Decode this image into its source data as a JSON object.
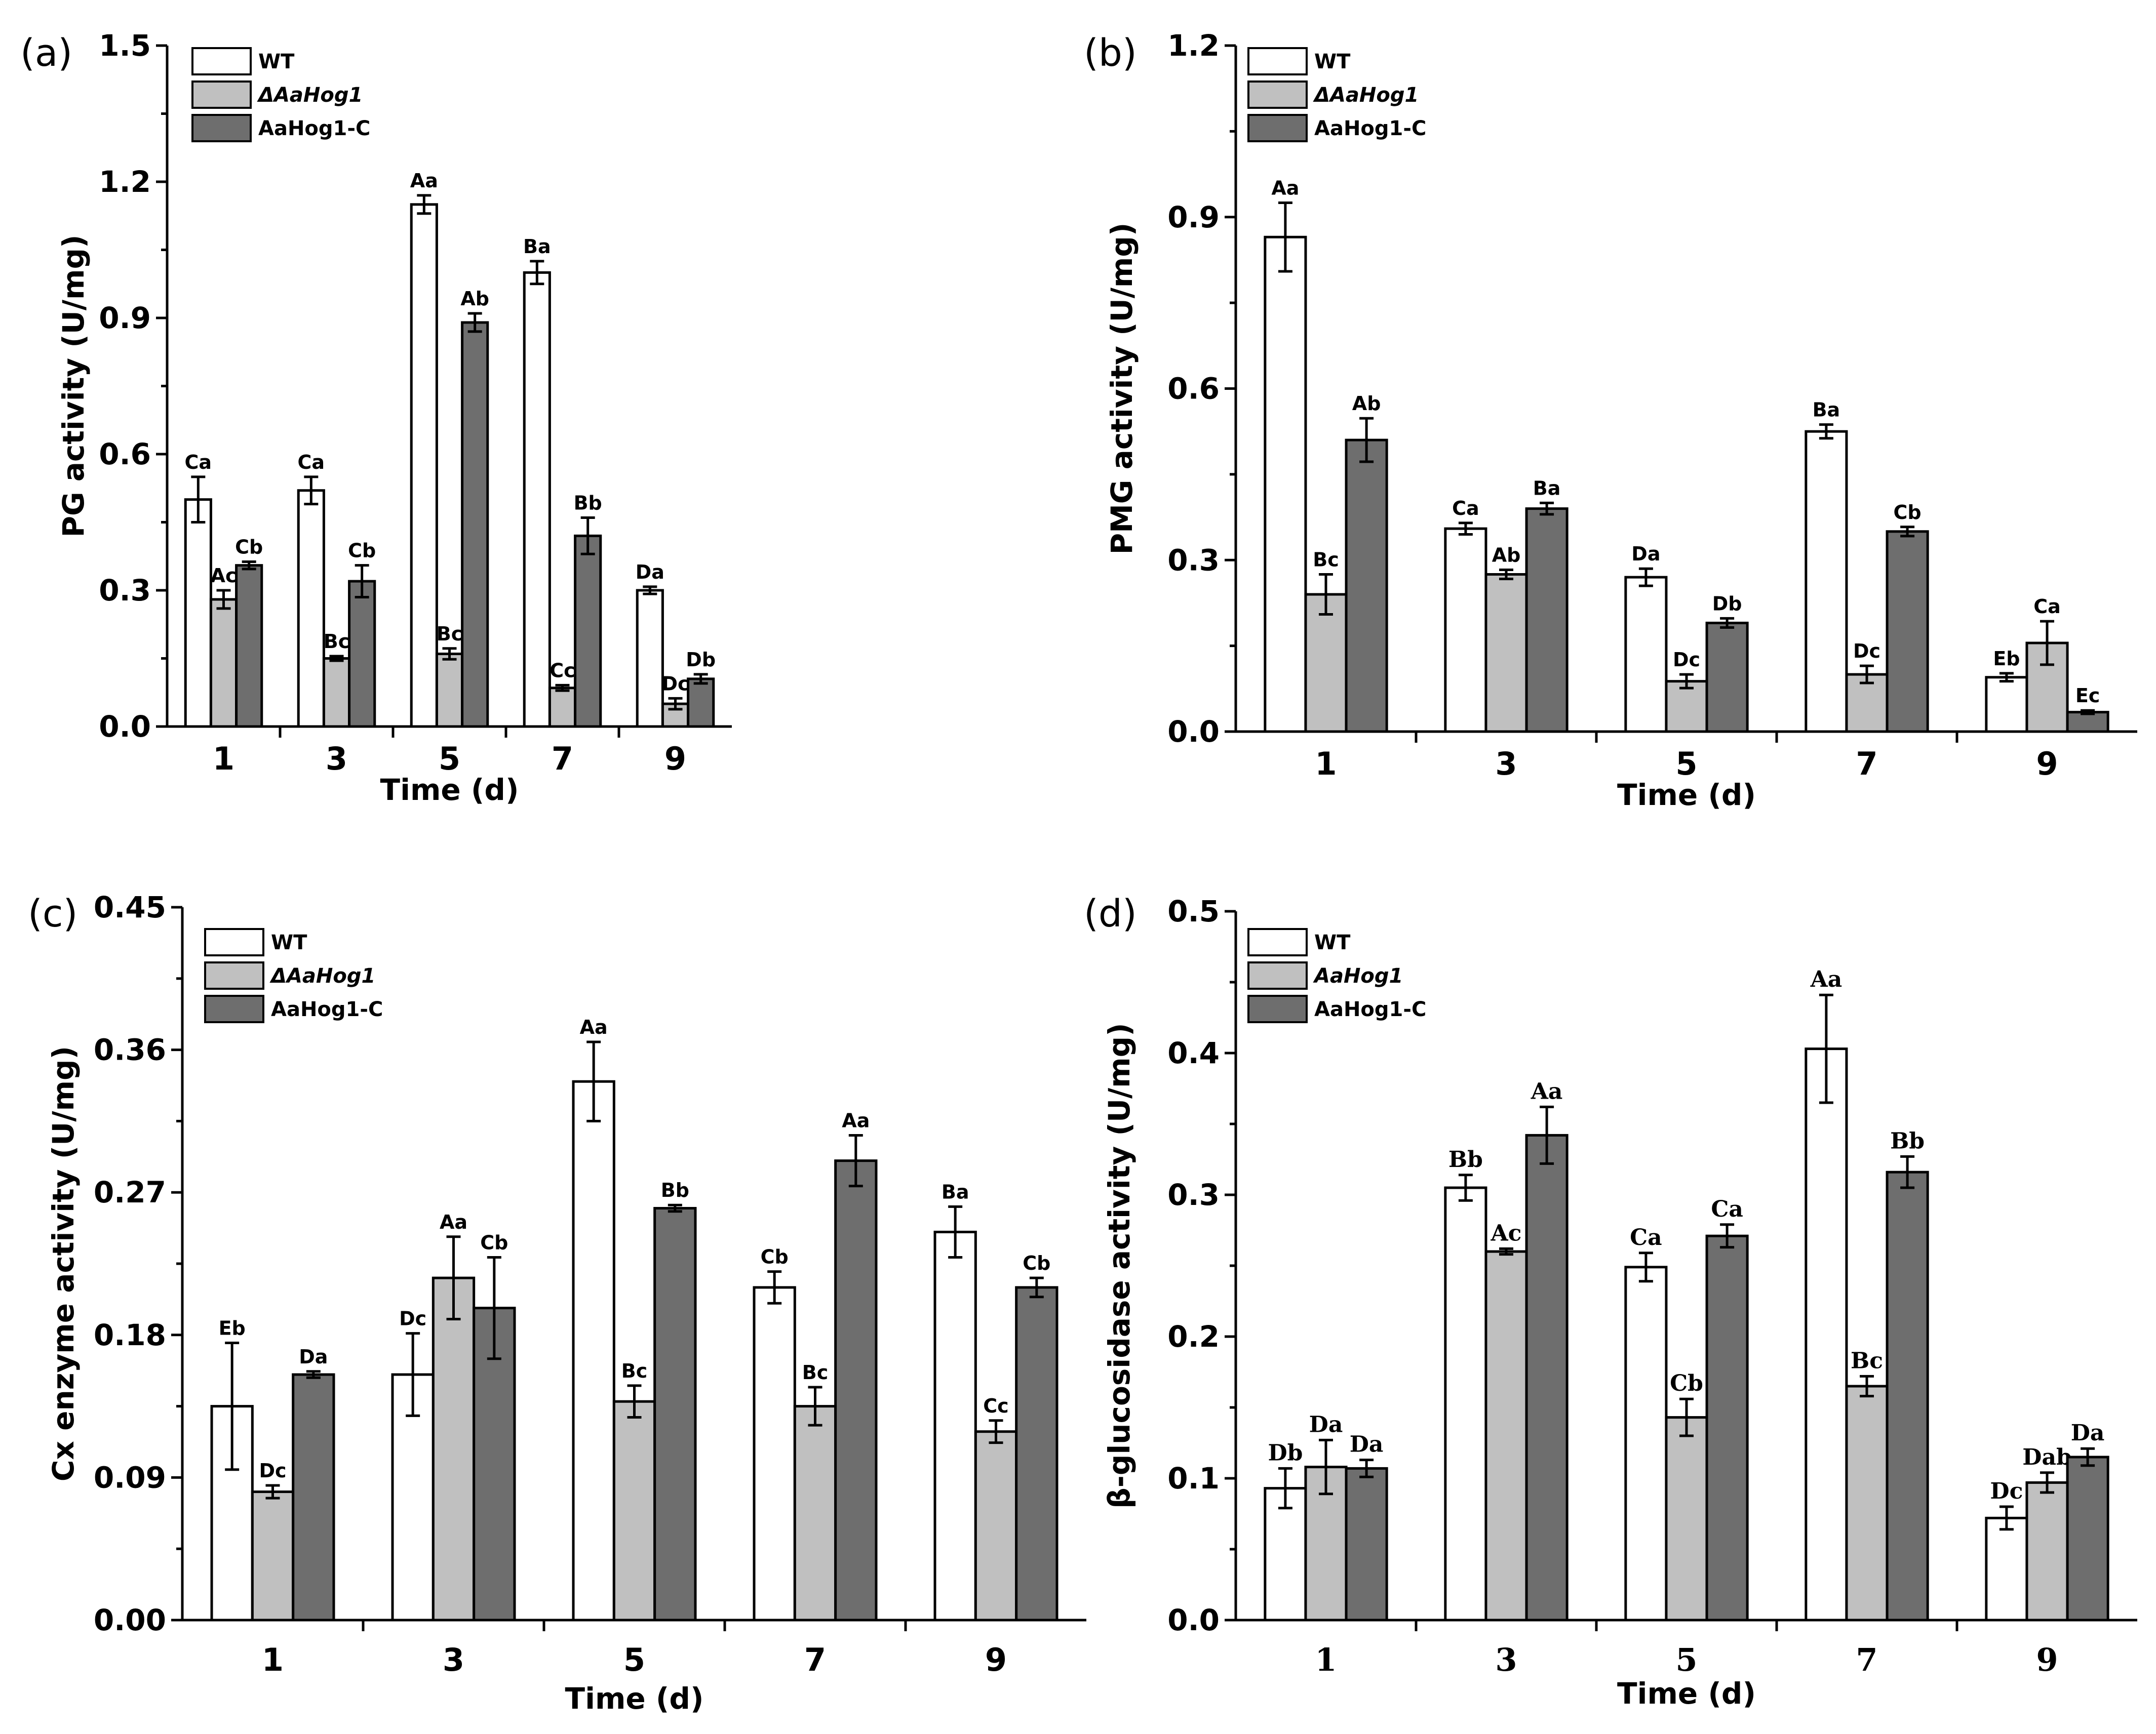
{
  "colors": {
    "WT": "#ffffff",
    "mutant": "#c0c0c0",
    "complement": "#6e6e6e"
  },
  "chart_data": [
    {
      "type": "bar",
      "panel": "(a)",
      "xlabel": "Time (d)",
      "ylabel": "PG  activity  (U/mg)",
      "ylim": [
        0,
        1.5
      ],
      "yticks": [
        "0.0",
        "0.3",
        "0.6",
        "0.9",
        "1.2",
        "1.5"
      ],
      "categories": [
        "1",
        "3",
        "5",
        "7",
        "9"
      ],
      "series": [
        {
          "name": "WT",
          "values": [
            0.5,
            0.52,
            1.15,
            1.0,
            0.3
          ],
          "errors": [
            0.05,
            0.03,
            0.02,
            0.025,
            0.008
          ],
          "labels": [
            "Ca",
            "Ca",
            "Aa",
            "Ba",
            "Da"
          ]
        },
        {
          "name": "ΔAaHog1",
          "values": [
            0.28,
            0.15,
            0.16,
            0.085,
            0.05
          ],
          "errors": [
            0.02,
            0.005,
            0.012,
            0.006,
            0.012
          ],
          "labels": [
            "Ac",
            "Bc",
            "Bc",
            "Cc",
            "Dc"
          ]
        },
        {
          "name": "AaHog1-C",
          "values": [
            0.355,
            0.32,
            0.89,
            0.42,
            0.105
          ],
          "errors": [
            0.008,
            0.035,
            0.02,
            0.04,
            0.01
          ],
          "labels": [
            "Cb",
            "Cb",
            "Ab",
            "Bb",
            "Db"
          ]
        }
      ],
      "legend": [
        "WT",
        "ΔAaHog1",
        "AaHog1-C"
      ]
    },
    {
      "type": "bar",
      "panel": "(b)",
      "xlabel": "Time (d)",
      "ylabel": "PMG  activity  (U/mg)",
      "ylim": [
        0,
        1.2
      ],
      "yticks": [
        "0.0",
        "0.3",
        "0.6",
        "0.9",
        "1.2"
      ],
      "categories": [
        "1",
        "3",
        "5",
        "7",
        "9"
      ],
      "series": [
        {
          "name": "WT",
          "values": [
            0.865,
            0.355,
            0.27,
            0.525,
            0.095
          ],
          "errors": [
            0.06,
            0.01,
            0.015,
            0.012,
            0.007
          ],
          "labels": [
            "Aa",
            "Ca",
            "Da",
            "Ba",
            "Eb"
          ]
        },
        {
          "name": "ΔAaHog1",
          "values": [
            0.24,
            0.275,
            0.088,
            0.1,
            0.155
          ],
          "errors": [
            0.035,
            0.008,
            0.012,
            0.015,
            0.038
          ],
          "labels": [
            "Bc",
            "Ab",
            "Dc",
            "Dc",
            "Ca"
          ]
        },
        {
          "name": "AaHog1-C",
          "values": [
            0.51,
            0.39,
            0.19,
            0.35,
            0.034
          ],
          "errors": [
            0.038,
            0.01,
            0.008,
            0.008,
            0.003
          ],
          "labels": [
            "Ab",
            "Ba",
            "Db",
            "Cb",
            "Ec"
          ]
        }
      ],
      "legend": [
        "WT",
        "ΔAaHog1",
        "AaHog1-C"
      ]
    },
    {
      "type": "bar",
      "panel": "(c)",
      "xlabel": "Time (d)",
      "ylabel": "Cx enzyme activity  (U/mg)",
      "ylim": [
        0,
        0.45
      ],
      "yticks": [
        "0.00",
        "0.09",
        "0.18",
        "0.27",
        "0.36",
        "0.45"
      ],
      "categories": [
        "1",
        "3",
        "5",
        "7",
        "9"
      ],
      "series": [
        {
          "name": "WT",
          "values": [
            0.135,
            0.155,
            0.34,
            0.21,
            0.245
          ],
          "errors": [
            0.04,
            0.026,
            0.025,
            0.01,
            0.016
          ],
          "labels": [
            "Eb",
            "Dc",
            "Aa",
            "Cb",
            "Ba"
          ]
        },
        {
          "name": "ΔAaHog1",
          "values": [
            0.081,
            0.216,
            0.138,
            0.135,
            0.119
          ],
          "errors": [
            0.004,
            0.026,
            0.01,
            0.012,
            0.007
          ],
          "labels": [
            "Dc",
            "Aa",
            "Bc",
            "Bc",
            "Cc"
          ]
        },
        {
          "name": "AaHog1-C",
          "values": [
            0.155,
            0.197,
            0.26,
            0.29,
            0.21
          ],
          "errors": [
            0.002,
            0.032,
            0.002,
            0.016,
            0.006
          ],
          "labels": [
            "Da",
            "Cb",
            "Bb",
            "Aa",
            "Cb"
          ]
        }
      ],
      "legend": [
        "WT",
        "ΔAaHog1",
        "AaHog1-C"
      ]
    },
    {
      "type": "bar",
      "panel": "(d)",
      "xlabel": "Time (d)",
      "ylabel": "β-glucosidase activity  (U/mg)",
      "ylim": [
        0,
        0.5
      ],
      "yticks": [
        "0.0",
        "0.1",
        "0.2",
        "0.3",
        "0.4",
        "0.5"
      ],
      "categories": [
        "1",
        "3",
        "5",
        "7",
        "9"
      ],
      "series": [
        {
          "name": "WT",
          "values": [
            0.093,
            0.305,
            0.249,
            0.403,
            0.072
          ],
          "errors": [
            0.014,
            0.009,
            0.01,
            0.038,
            0.008
          ],
          "labels": [
            "Db",
            "Bb",
            "Ca",
            "Aa",
            "Dc"
          ]
        },
        {
          "name": "AaHog1",
          "values": [
            0.108,
            0.26,
            0.143,
            0.165,
            0.097
          ],
          "errors": [
            0.019,
            0.002,
            0.013,
            0.007,
            0.007
          ],
          "labels": [
            "Da",
            "Ac",
            "Cb",
            "Bc",
            "Dab"
          ]
        },
        {
          "name": "AaHog1-C",
          "values": [
            0.107,
            0.342,
            0.271,
            0.316,
            0.115
          ],
          "errors": [
            0.006,
            0.02,
            0.008,
            0.011,
            0.006
          ],
          "labels": [
            "Da",
            "Aa",
            "Ca",
            "Bb",
            "Da"
          ]
        }
      ],
      "legend": [
        "WT",
        "AaHog1",
        "AaHog1-C"
      ]
    }
  ]
}
